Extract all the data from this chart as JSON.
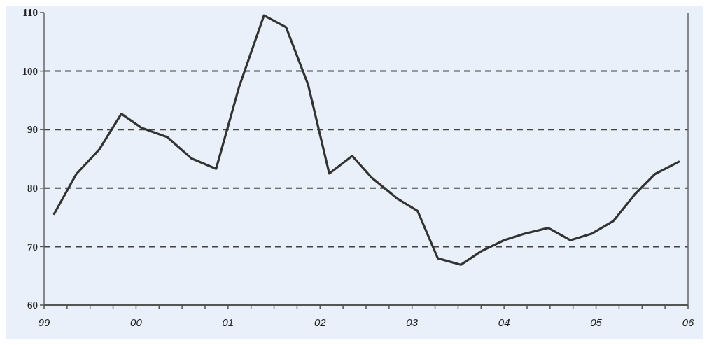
{
  "chart_data": {
    "type": "line",
    "x": [
      1999.11,
      1999.35,
      1999.6,
      1999.84,
      2000.06,
      2000.34,
      2000.6,
      2000.87,
      2001.12,
      2001.39,
      2001.63,
      2001.87,
      2002.1,
      2002.35,
      2002.56,
      2002.84,
      2003.06,
      2003.28,
      2003.53,
      2003.75,
      2004.0,
      2004.22,
      2004.48,
      2004.72,
      2004.95,
      2005.19,
      2005.42,
      2005.64,
      2005.9
    ],
    "series": [
      {
        "color": "#333333",
        "values": [
          75.6,
          82.4,
          86.6,
          92.7,
          90.3,
          88.7,
          85.1,
          83.3,
          97.3,
          109.5,
          107.5,
          97.7,
          82.5,
          85.5,
          81.8,
          78.2,
          76.1,
          68.0,
          66.9,
          69.2,
          71.1,
          72.2,
          73.2,
          71.1,
          72.2,
          74.4,
          78.9,
          82.4,
          84.5
        ]
      }
    ],
    "xlim": [
      1999,
      2006
    ],
    "xticks": [
      {
        "value": 1999,
        "label": "99"
      },
      {
        "value": 1999.25,
        "label": null
      },
      {
        "value": 1999.5,
        "label": null
      },
      {
        "value": 1999.75,
        "label": null
      },
      {
        "value": 2000,
        "label": "00"
      },
      {
        "value": 2000.25,
        "label": null
      },
      {
        "value": 2000.5,
        "label": null
      },
      {
        "value": 2000.75,
        "label": null
      },
      {
        "value": 2001,
        "label": "01"
      },
      {
        "value": 2001.25,
        "label": null
      },
      {
        "value": 2001.5,
        "label": null
      },
      {
        "value": 2001.75,
        "label": null
      },
      {
        "value": 2002,
        "label": "02"
      },
      {
        "value": 2002.25,
        "label": null
      },
      {
        "value": 2002.5,
        "label": null
      },
      {
        "value": 2002.75,
        "label": null
      },
      {
        "value": 2003,
        "label": "03"
      },
      {
        "value": 2003.25,
        "label": null
      },
      {
        "value": 2003.5,
        "label": null
      },
      {
        "value": 2003.75,
        "label": null
      },
      {
        "value": 2004,
        "label": "04"
      },
      {
        "value": 2004.25,
        "label": null
      },
      {
        "value": 2004.5,
        "label": null
      },
      {
        "value": 2004.75,
        "label": null
      },
      {
        "value": 2005,
        "label": "05"
      },
      {
        "value": 2005.25,
        "label": null
      },
      {
        "value": 2005.5,
        "label": null
      },
      {
        "value": 2005.75,
        "label": null
      },
      {
        "value": 2006,
        "label": "06"
      }
    ],
    "ylim": [
      60,
      110
    ],
    "yticks": [
      60,
      70,
      80,
      90,
      100,
      110
    ],
    "grid": "y",
    "line_style": "solid",
    "marker": "none"
  }
}
